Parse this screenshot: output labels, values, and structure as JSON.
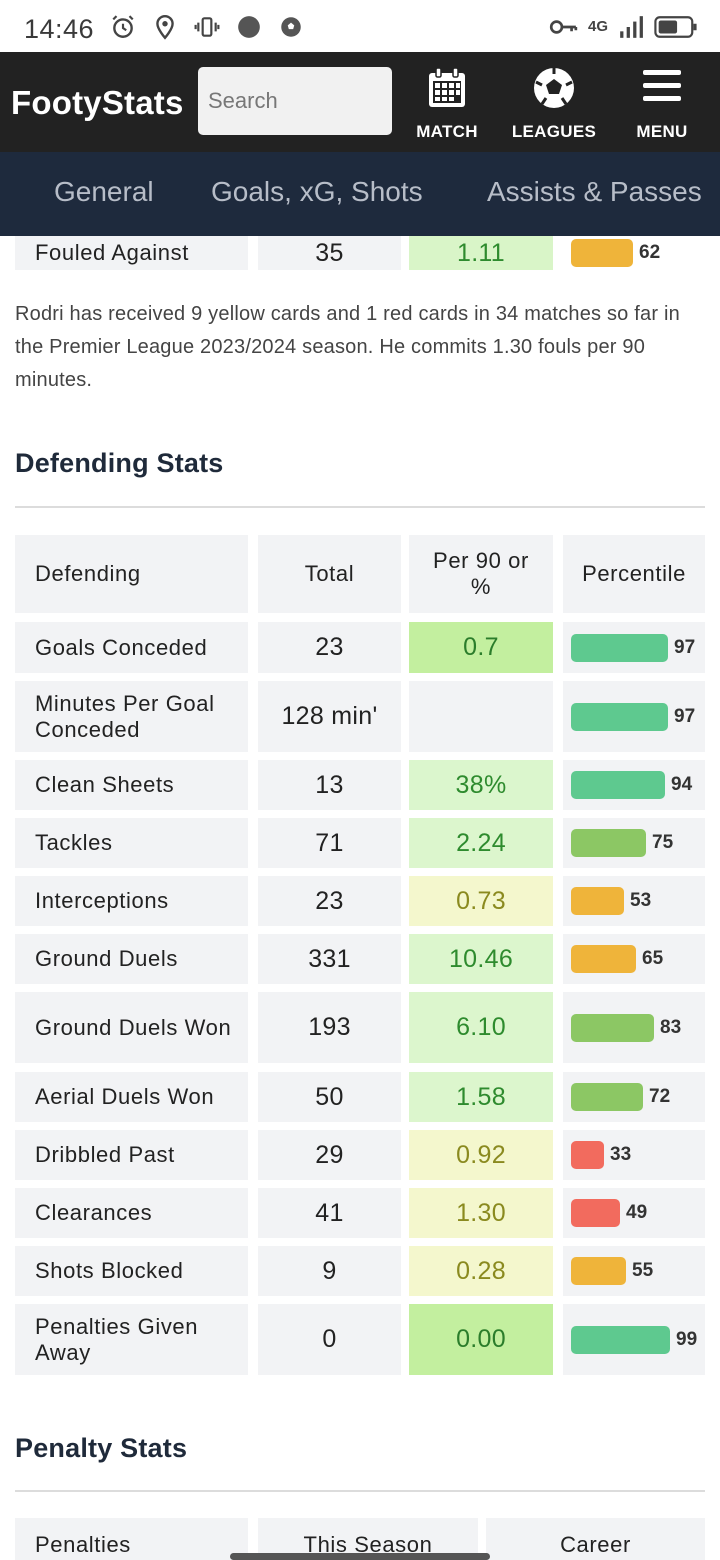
{
  "status_bar": {
    "time": "14:46",
    "network": "4G"
  },
  "header": {
    "logo": "FootyStats",
    "search_placeholder": "Search",
    "buttons": [
      {
        "label": "MATCH",
        "icon": "calendar-icon"
      },
      {
        "label": "LEAGUES",
        "icon": "soccer-ball-icon"
      },
      {
        "label": "MENU",
        "icon": "hamburger-menu-icon"
      }
    ]
  },
  "tabs": [
    "General",
    "Goals, xG, Shots",
    "Assists & Passes"
  ],
  "prev_row": {
    "label": "Fouled Against",
    "total": "35",
    "per90": "1.11",
    "percentile": "62"
  },
  "paragraph": "Rodri has received 9 yellow cards and 1 red cards in 34 matches so far in the Premier League 2023/2024 season. He commits 1.30 fouls per 90 minutes.",
  "defending": {
    "title": "Defending Stats",
    "columns": [
      "Defending",
      "Total",
      "Per 90 or %",
      "Percentile"
    ],
    "rows": [
      {
        "label": "Goals Conceded",
        "total": "23",
        "per90": "0.7",
        "percentile": "97"
      },
      {
        "label": "Minutes Per Goal Conceded",
        "total": "128 min'",
        "per90": "",
        "percentile": "97"
      },
      {
        "label": "Clean Sheets",
        "total": "13",
        "per90": "38%",
        "percentile": "94"
      },
      {
        "label": "Tackles",
        "total": "71",
        "per90": "2.24",
        "percentile": "75"
      },
      {
        "label": "Interceptions",
        "total": "23",
        "per90": "0.73",
        "percentile": "53"
      },
      {
        "label": "Ground Duels",
        "total": "331",
        "per90": "10.46",
        "percentile": "65"
      },
      {
        "label": "Ground Duels Won",
        "total": "193",
        "per90": "6.10",
        "percentile": "83"
      },
      {
        "label": "Aerial Duels Won",
        "total": "50",
        "per90": "1.58",
        "percentile": "72"
      },
      {
        "label": "Dribbled Past",
        "total": "29",
        "per90": "0.92",
        "percentile": "33"
      },
      {
        "label": "Clearances",
        "total": "41",
        "per90": "1.30",
        "percentile": "49"
      },
      {
        "label": "Shots Blocked",
        "total": "9",
        "per90": "0.28",
        "percentile": "55"
      },
      {
        "label": "Penalties Given Away",
        "total": "0",
        "per90": "0.00",
        "percentile": "99"
      }
    ]
  },
  "penalty": {
    "title": "Penalty Stats",
    "columns": [
      "Penalties",
      "This Season",
      "Career"
    ]
  },
  "colors": {
    "header_bg": "#222222",
    "tabs_bg": "#1e2a3d",
    "bar_green": "#5ec98f",
    "bar_lightgreen": "#8cc764",
    "bar_orange": "#efb43a",
    "bar_red": "#f26b5e"
  }
}
